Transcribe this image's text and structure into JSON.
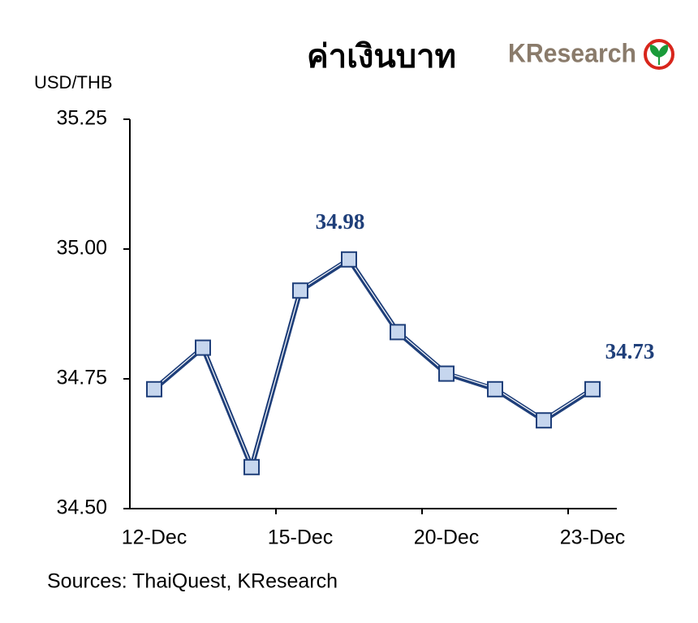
{
  "chart_data": {
    "type": "line",
    "title": "ค่าเงินบาท",
    "logo": "KResearch",
    "ylabel": "USD/THB",
    "source": "Sources: ThaiQuest, KResearch",
    "categories": [
      "12-Dec",
      null,
      null,
      "15-Dec",
      null,
      null,
      "20-Dec",
      null,
      null,
      "23-Dec"
    ],
    "values": [
      34.73,
      34.81,
      34.58,
      34.92,
      34.98,
      34.84,
      34.76,
      34.73,
      34.67,
      34.73
    ],
    "value_labels": [
      null,
      null,
      null,
      null,
      "34.98",
      null,
      null,
      null,
      null,
      "34.73"
    ],
    "color": "#1f3f7a",
    "marker_color": "#c6d6ee",
    "ylim": [
      34.5,
      35.25
    ],
    "yticks": [
      {
        "value": 34.5,
        "label": "34.50"
      },
      34.75,
      {
        "value": 35,
        "label": "35.00"
      },
      35.25
    ]
  }
}
